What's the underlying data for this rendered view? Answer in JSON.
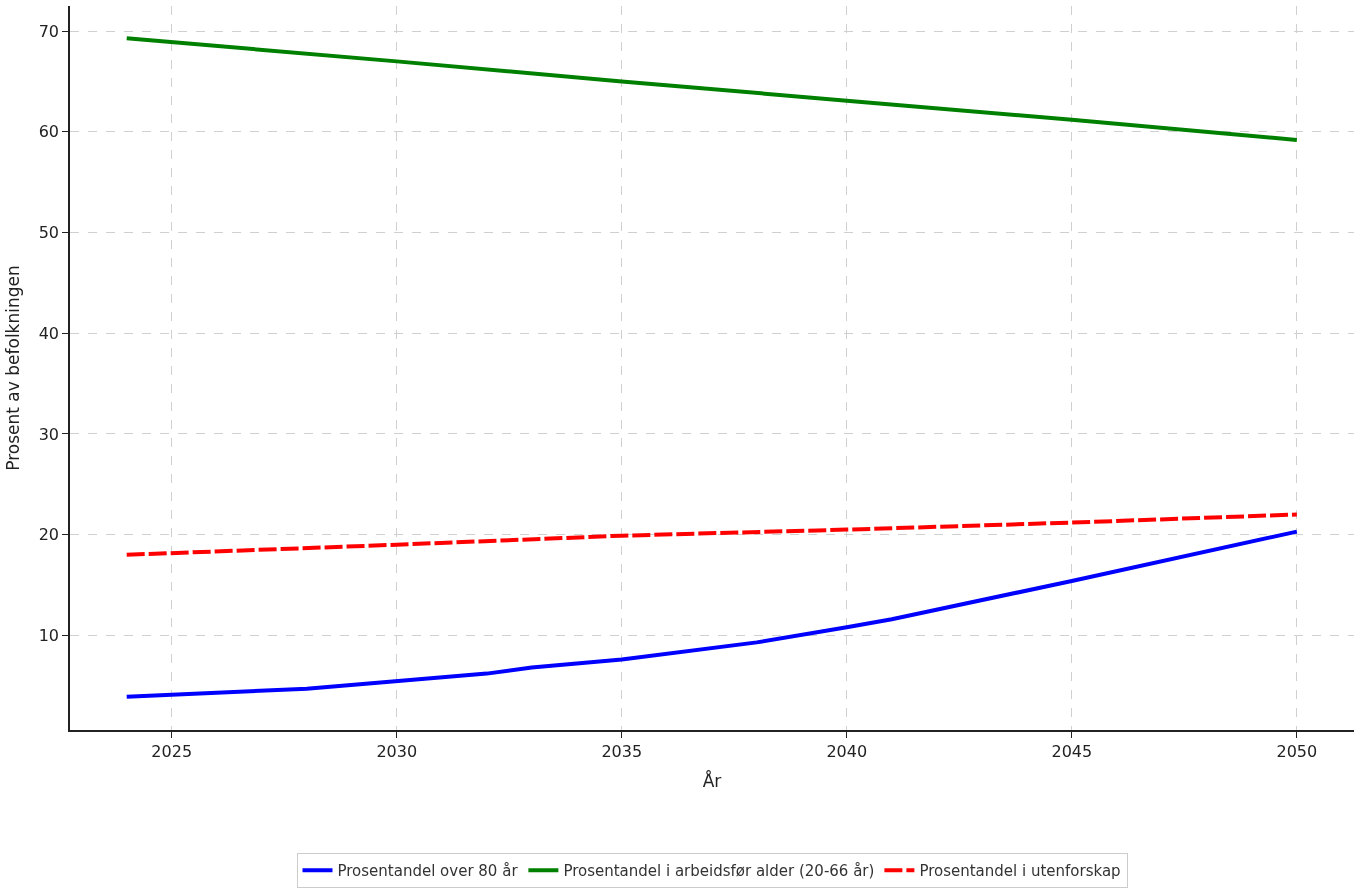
{
  "chart_data": {
    "type": "line",
    "xlabel": "År",
    "ylabel": "Prosent av befolkningen",
    "xlim": [
      2022.74,
      2051.27
    ],
    "ylim": [
      0.6,
      72.5
    ],
    "xticks": [
      2025,
      2030,
      2035,
      2040,
      2045,
      2050
    ],
    "yticks": [
      10,
      20,
      30,
      40,
      50,
      60,
      70
    ],
    "grid": true,
    "legend": "bottom",
    "series": [
      {
        "name": "Prosentandel over 80 år",
        "color": "#0000ff",
        "line_style": "solid",
        "x": [
          2024,
          2028,
          2032,
          2033,
          2035,
          2038,
          2040,
          2041,
          2045,
          2050
        ],
        "values": [
          3.9,
          4.7,
          6.2,
          6.8,
          7.6,
          9.3,
          10.8,
          11.6,
          15.4,
          20.3
        ]
      },
      {
        "name": "Prosentandel i arbeidsfør alder (20-66 år)",
        "color": "#008000",
        "line_style": "solid",
        "x": [
          2024,
          2030,
          2035,
          2040,
          2045,
          2050
        ],
        "values": [
          69.3,
          67.0,
          65.0,
          63.1,
          61.2,
          59.2
        ]
      },
      {
        "name": "Prosentandel i utenforskap",
        "color": "#ff0000",
        "line_style": "dashed",
        "x": [
          2024,
          2030,
          2035,
          2040,
          2045,
          2050
        ],
        "values": [
          18.0,
          19.0,
          19.9,
          20.5,
          21.2,
          22.0
        ]
      }
    ]
  }
}
